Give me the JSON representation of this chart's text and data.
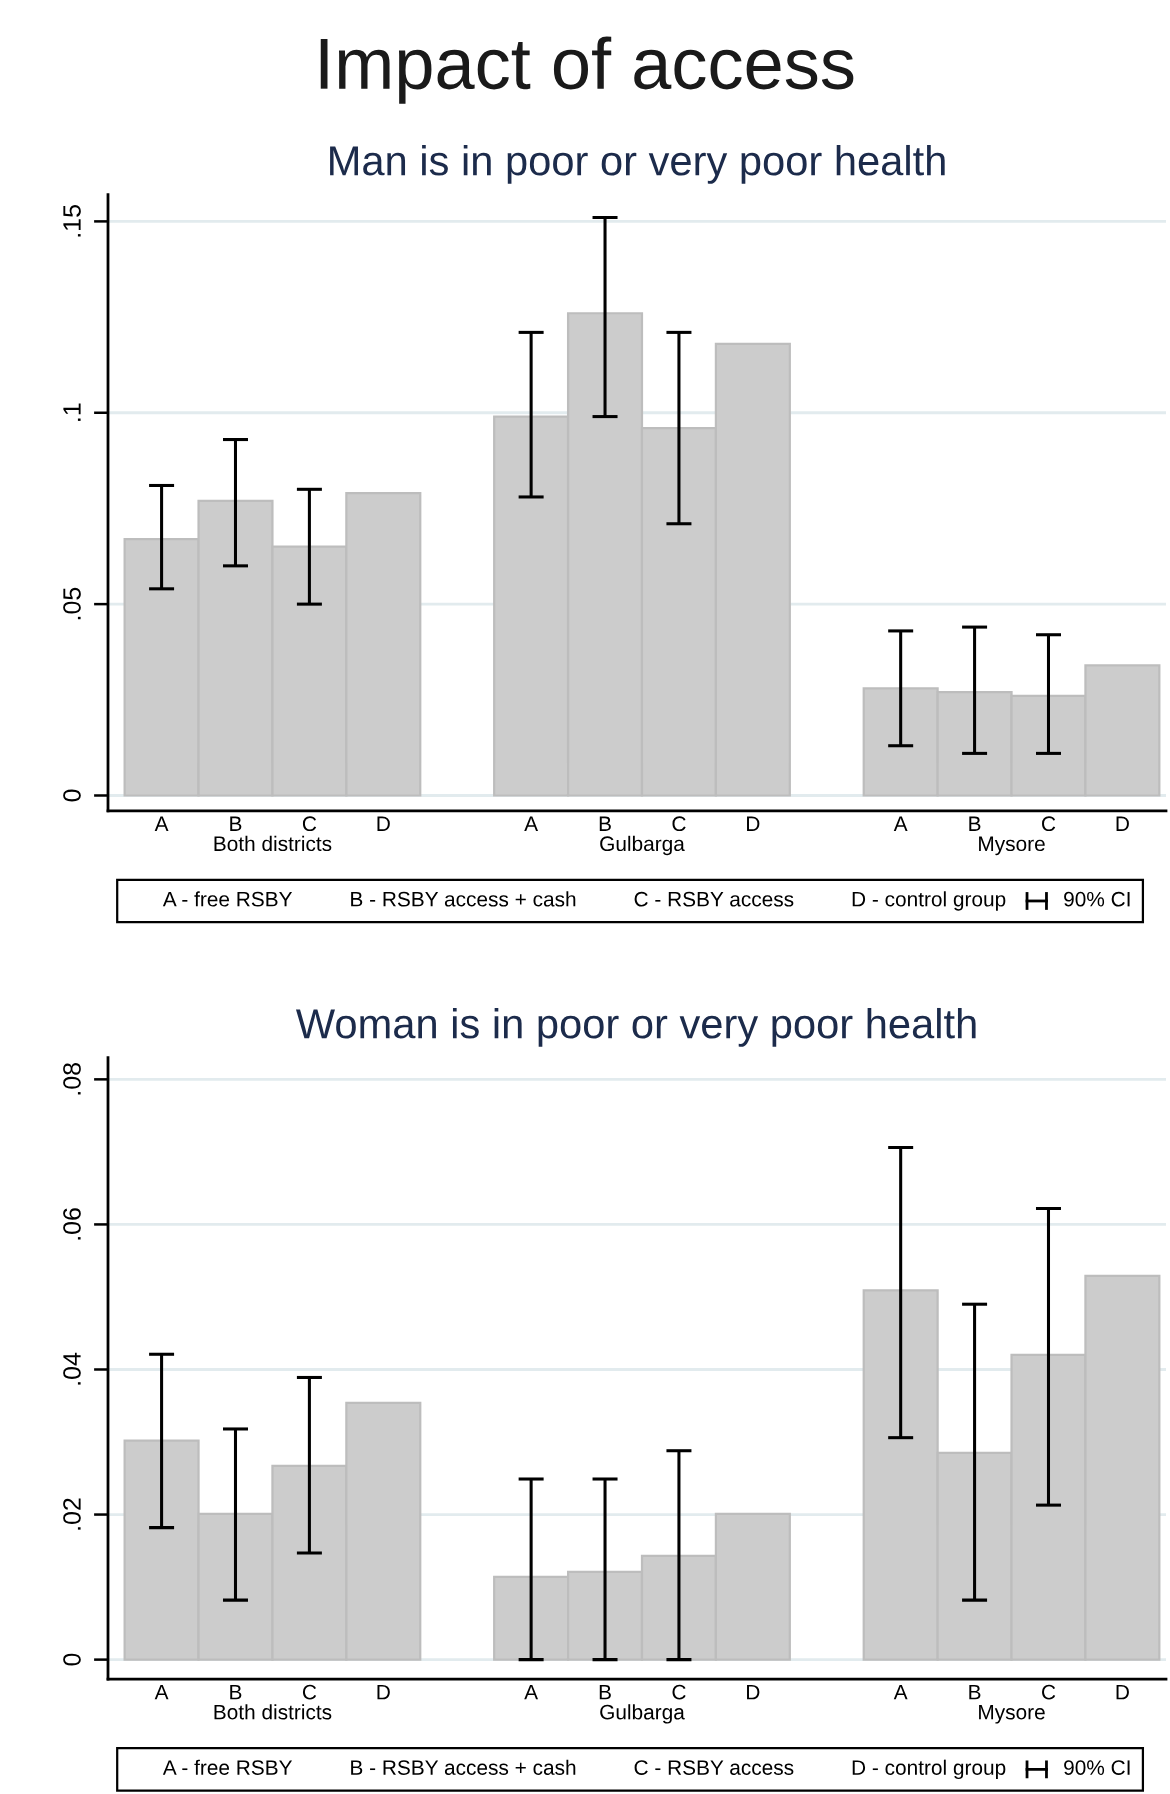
{
  "chart_data": [
    {
      "type": "bar",
      "title": "Impact of access",
      "subtitle": "Man is in poor or very poor health",
      "categories": [
        "Both districts",
        "Gulbarga",
        "Mysore"
      ],
      "series": [
        {
          "name": "A",
          "color": "#cccccc",
          "values": [
            0.067,
            0.099,
            0.028
          ],
          "errors": [
            [
              0.054,
              0.081
            ],
            [
              0.078,
              0.121
            ],
            [
              0.013,
              0.043
            ]
          ]
        },
        {
          "name": "B",
          "color": "#cccccc",
          "values": [
            0.077,
            0.126,
            0.027
          ],
          "errors": [
            [
              0.06,
              0.093
            ],
            [
              0.099,
              0.151
            ],
            [
              0.011,
              0.044
            ]
          ]
        },
        {
          "name": "C",
          "color": "#cccccc",
          "values": [
            0.065,
            0.096,
            0.026
          ],
          "errors": [
            [
              0.05,
              0.08
            ],
            [
              0.071,
              0.121
            ],
            [
              0.011,
              0.042
            ]
          ]
        },
        {
          "name": "D",
          "color": "#cccccc",
          "values": [
            0.079,
            0.118,
            0.034
          ]
        }
      ],
      "ylim": [
        -0.004,
        0.157
      ],
      "yticks": [
        0,
        {
          "value": 0.05,
          "label": ".05"
        },
        {
          "value": 0.1,
          "label": ".1"
        },
        {
          "value": 0.15,
          "label": ".15"
        }
      ],
      "grid": "y",
      "legend": "bottom",
      "annotations": [
        "A - free RSBY",
        "B - RSBY access + cash",
        "C - RSBY access",
        "D - control group",
        "90% CI"
      ]
    },
    {
      "type": "bar",
      "title": "Woman is in poor or very poor health",
      "categories": [
        "Both districts",
        "Gulbarga",
        "Mysore"
      ],
      "series": [
        {
          "name": "A",
          "color": "#cccccc",
          "values": [
            0.0302,
            0.0114,
            0.0509
          ],
          "errors": [
            [
              0.0182,
              0.0421
            ],
            [
              0,
              0.0249
            ],
            [
              0.0306,
              0.0706
            ]
          ]
        },
        {
          "name": "B",
          "color": "#cccccc",
          "values": [
            0.0201,
            0.0121,
            0.0285
          ],
          "errors": [
            [
              0.0082,
              0.0318
            ],
            [
              0,
              0.0249
            ],
            [
              0.0082,
              0.049
            ]
          ]
        },
        {
          "name": "C",
          "color": "#cccccc",
          "values": [
            0.0267,
            0.0143,
            0.042
          ],
          "errors": [
            [
              0.0147,
              0.0389
            ],
            [
              0,
              0.0288
            ],
            [
              0.0213,
              0.0622
            ]
          ]
        },
        {
          "name": "D",
          "color": "#cccccc",
          "values": [
            0.0354,
            0.0201,
            0.0529
          ]
        }
      ],
      "ylim": [
        -0.0027,
        0.083
      ],
      "yticks": [
        0,
        {
          "value": 0.02,
          "label": ".02"
        },
        {
          "value": 0.04,
          "label": ".04"
        },
        {
          "value": 0.06,
          "label": ".06"
        },
        {
          "value": 0.08,
          "label": ".08"
        }
      ],
      "grid": "y",
      "legend": "bottom",
      "annotations": [
        "A - free RSBY",
        "B - RSBY access + cash",
        "C - RSBY access",
        "D - control group",
        "90% CI"
      ]
    }
  ]
}
